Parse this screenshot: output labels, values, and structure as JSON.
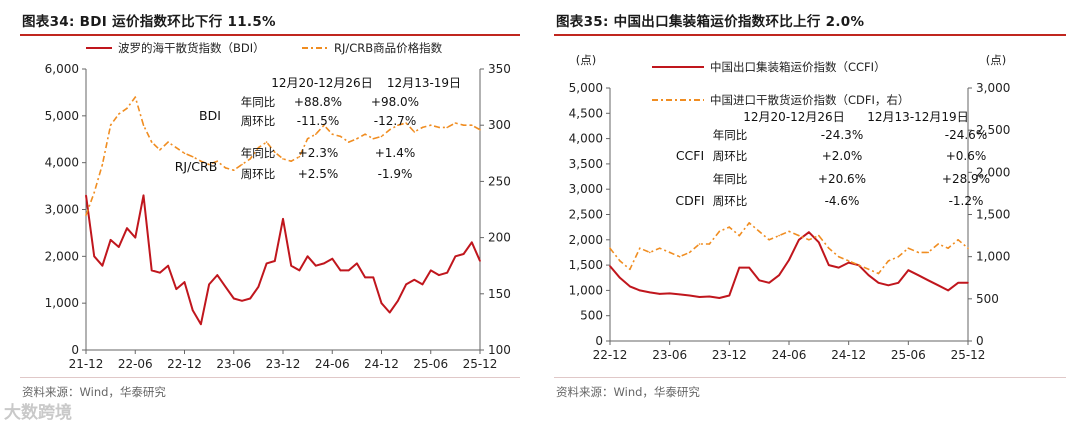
{
  "panels": [
    {
      "title": "图表34:  BDI 运价指数环比下行 11.5%",
      "source": "资料来源：Wind，华泰研究"
    },
    {
      "title": "图表35:  中国出口集装箱运价指数环比上行 2.0%",
      "source": "资料来源：Wind，华泰研究"
    }
  ],
  "watermark": "大数跨境",
  "chart_data": [
    {
      "type": "line",
      "title": "图表34:  BDI 运价指数环比下行 11.5%",
      "x_tick_labels": [
        "21-12",
        "22-06",
        "22-12",
        "23-06",
        "23-12",
        "24-06",
        "24-12",
        "25-06",
        "25-12"
      ],
      "x_range": [
        "2021-12",
        "2025-12"
      ],
      "left_axis": {
        "ylim": [
          0,
          6000
        ],
        "ticks": [
          "0",
          "1,000",
          "2,000",
          "3,000",
          "4,000",
          "5,000",
          "6,000"
        ]
      },
      "right_axis": {
        "ylim": [
          100,
          350
        ],
        "ticks": [
          "100",
          "150",
          "200",
          "250",
          "300",
          "350"
        ]
      },
      "legend_placement": "top",
      "series": [
        {
          "name": "波罗的海干散货指数（BDI）",
          "axis": "left",
          "color": "#c0161d",
          "style": "solid",
          "x": [
            "2021-12",
            "2022-01",
            "2022-02",
            "2022-03",
            "2022-04",
            "2022-05",
            "2022-06",
            "2022-07",
            "2022-08",
            "2022-09",
            "2022-10",
            "2022-11",
            "2022-12",
            "2023-01",
            "2023-02",
            "2023-03",
            "2023-04",
            "2023-05",
            "2023-06",
            "2023-07",
            "2023-08",
            "2023-09",
            "2023-10",
            "2023-11",
            "2023-12",
            "2024-01",
            "2024-02",
            "2024-03",
            "2024-04",
            "2024-05",
            "2024-06",
            "2024-07",
            "2024-08",
            "2024-09",
            "2024-10",
            "2024-11",
            "2024-12",
            "2025-01",
            "2025-02",
            "2025-03",
            "2025-04",
            "2025-05",
            "2025-06",
            "2025-07",
            "2025-08",
            "2025-09",
            "2025-10",
            "2025-11",
            "2025-12"
          ],
          "y": [
            3300,
            2000,
            1800,
            2350,
            2200,
            2600,
            2400,
            3300,
            1700,
            1650,
            1800,
            1300,
            1450,
            850,
            550,
            1400,
            1600,
            1350,
            1100,
            1050,
            1100,
            1350,
            1850,
            1900,
            2800,
            1800,
            1700,
            2000,
            1800,
            1850,
            1950,
            1700,
            1700,
            1850,
            1550,
            1550,
            1000,
            800,
            1050,
            1400,
            1500,
            1400,
            1700,
            1600,
            1650,
            2000,
            2050,
            2300,
            1900
          ]
        },
        {
          "name": "RJ/CRB商品价格指数",
          "axis": "right",
          "color": "#f08d21",
          "style": "dash-dot",
          "x": [
            "2021-12",
            "2022-01",
            "2022-02",
            "2022-03",
            "2022-04",
            "2022-05",
            "2022-06",
            "2022-07",
            "2022-08",
            "2022-09",
            "2022-10",
            "2022-11",
            "2022-12",
            "2023-01",
            "2023-02",
            "2023-03",
            "2023-04",
            "2023-05",
            "2023-06",
            "2023-07",
            "2023-08",
            "2023-09",
            "2023-10",
            "2023-11",
            "2023-12",
            "2024-01",
            "2024-02",
            "2024-03",
            "2024-04",
            "2024-05",
            "2024-06",
            "2024-07",
            "2024-08",
            "2024-09",
            "2024-10",
            "2024-11",
            "2024-12",
            "2025-01",
            "2025-02",
            "2025-03",
            "2025-04",
            "2025-05",
            "2025-06",
            "2025-07",
            "2025-08",
            "2025-09",
            "2025-10",
            "2025-11",
            "2025-12"
          ],
          "y": [
            220,
            240,
            265,
            300,
            310,
            315,
            325,
            300,
            285,
            278,
            285,
            280,
            275,
            272,
            268,
            265,
            268,
            262,
            260,
            265,
            270,
            280,
            285,
            276,
            270,
            268,
            272,
            288,
            292,
            300,
            292,
            290,
            285,
            288,
            292,
            288,
            290,
            296,
            300,
            302,
            294,
            298,
            300,
            298,
            298,
            302,
            300,
            300,
            296
          ]
        }
      ],
      "annotations": {
        "columns": [
          "12月20-12月26日",
          "12月13-19日"
        ],
        "groups": [
          {
            "label": "BDI",
            "rows": [
              {
                "name": "年同比",
                "values": [
                  "+88.8%",
                  "+98.0%"
                ]
              },
              {
                "name": "周环比",
                "values": [
                  "-11.5%",
                  "-12.7%"
                ]
              }
            ]
          },
          {
            "label": "RJ/CRB",
            "rows": [
              {
                "name": "年同比",
                "values": [
                  "+2.3%",
                  "+1.4%"
                ]
              },
              {
                "name": "周环比",
                "values": [
                  "+2.5%",
                  "-1.9%"
                ]
              }
            ]
          }
        ]
      }
    },
    {
      "type": "line",
      "title": "图表35:  中国出口集装箱运价指数环比上行 2.0%",
      "x_tick_labels": [
        "22-12",
        "23-06",
        "23-12",
        "24-06",
        "24-12",
        "25-06",
        "25-12"
      ],
      "x_range": [
        "2022-12",
        "2025-12"
      ],
      "left_axis": {
        "unit": "(点)",
        "ylim": [
          0,
          5000
        ],
        "ticks": [
          "0",
          "500",
          "1,000",
          "1,500",
          "2,000",
          "2,500",
          "3,000",
          "3,500",
          "4,000",
          "4,500",
          "5,000"
        ]
      },
      "right_axis": {
        "unit": "(点)",
        "ylim": [
          0,
          3000
        ],
        "ticks": [
          "0",
          "500",
          "1,000",
          "1,500",
          "2,000",
          "2,500",
          "3,000"
        ]
      },
      "legend_placement": "top",
      "series": [
        {
          "name": "中国出口集装箱运价指数（CCFI）",
          "axis": "left",
          "color": "#c0161d",
          "style": "solid",
          "x": [
            "2022-12",
            "2023-01",
            "2023-02",
            "2023-03",
            "2023-04",
            "2023-05",
            "2023-06",
            "2023-07",
            "2023-08",
            "2023-09",
            "2023-10",
            "2023-11",
            "2023-12",
            "2024-01",
            "2024-02",
            "2024-03",
            "2024-04",
            "2024-05",
            "2024-06",
            "2024-07",
            "2024-08",
            "2024-09",
            "2024-10",
            "2024-11",
            "2024-12",
            "2025-01",
            "2025-02",
            "2025-03",
            "2025-04",
            "2025-05",
            "2025-06",
            "2025-07",
            "2025-08",
            "2025-09",
            "2025-10",
            "2025-11",
            "2025-12"
          ],
          "y": [
            1480,
            1250,
            1080,
            1000,
            960,
            930,
            940,
            920,
            900,
            870,
            880,
            850,
            900,
            1450,
            1450,
            1200,
            1150,
            1300,
            1600,
            2000,
            2150,
            1950,
            1500,
            1450,
            1550,
            1500,
            1300,
            1150,
            1100,
            1150,
            1400,
            1300,
            1200,
            1100,
            1000,
            1150,
            1150
          ]
        },
        {
          "name": "中国进口干散货运价指数（CDFI，右）",
          "axis": "right",
          "color": "#f08d21",
          "style": "dash-dot",
          "x": [
            "2022-12",
            "2023-01",
            "2023-02",
            "2023-03",
            "2023-04",
            "2023-05",
            "2023-06",
            "2023-07",
            "2023-08",
            "2023-09",
            "2023-10",
            "2023-11",
            "2023-12",
            "2024-01",
            "2024-02",
            "2024-03",
            "2024-04",
            "2024-05",
            "2024-06",
            "2024-07",
            "2024-08",
            "2024-09",
            "2024-10",
            "2024-11",
            "2024-12",
            "2025-01",
            "2025-02",
            "2025-03",
            "2025-04",
            "2025-05",
            "2025-06",
            "2025-07",
            "2025-08",
            "2025-09",
            "2025-10",
            "2025-11",
            "2025-12"
          ],
          "y": [
            1100,
            950,
            850,
            1100,
            1050,
            1100,
            1050,
            1000,
            1050,
            1150,
            1150,
            1300,
            1350,
            1250,
            1400,
            1300,
            1200,
            1250,
            1300,
            1250,
            1200,
            1250,
            1100,
            1000,
            950,
            900,
            850,
            800,
            950,
            1000,
            1100,
            1050,
            1050,
            1150,
            1100,
            1200,
            1100
          ]
        }
      ],
      "annotations": {
        "columns": [
          "12月20-12月26日",
          "12月13-12月19日"
        ],
        "groups": [
          {
            "label": "CCFI",
            "rows": [
              {
                "name": "年同比",
                "values": [
                  "-24.3%",
                  "-24.6%"
                ]
              },
              {
                "name": "周环比",
                "values": [
                  "+2.0%",
                  "+0.6%"
                ]
              }
            ]
          },
          {
            "label": "CDFI",
            "rows": [
              {
                "name": "年同比",
                "values": [
                  "+20.6%",
                  "+28.9%"
                ]
              },
              {
                "name": "周环比",
                "values": [
                  "-4.6%",
                  "-1.2%"
                ]
              }
            ]
          }
        ]
      }
    }
  ]
}
